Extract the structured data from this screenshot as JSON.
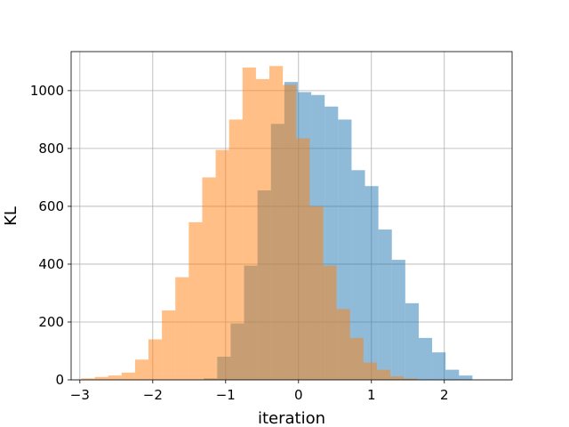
{
  "chart_data": {
    "type": "bar",
    "subtype": "histogram",
    "title": "",
    "xlabel": "iteration",
    "ylabel": "KL",
    "xlim": [
      -3.12,
      2.93
    ],
    "ylim": [
      0,
      1135
    ],
    "xticks": [
      -3,
      -2,
      -1,
      0,
      1,
      2
    ],
    "yticks": [
      0,
      200,
      400,
      600,
      800,
      1000
    ],
    "grid": true,
    "legend": "none",
    "series": [
      {
        "color": "#1f77b4",
        "opacity": 0.5,
        "bin_width": 0.1843,
        "bin_start": -1.3,
        "counts": [
          5,
          80,
          195,
          395,
          655,
          885,
          1030,
          995,
          985,
          945,
          900,
          725,
          670,
          520,
          415,
          265,
          145,
          95,
          35,
          15
        ]
      },
      {
        "color": "#ff7f0e",
        "opacity": 0.5,
        "bin_width": 0.1843,
        "bin_start": -2.98,
        "counts": [
          5,
          10,
          15,
          25,
          70,
          140,
          240,
          355,
          545,
          700,
          795,
          900,
          1080,
          1040,
          1085,
          1020,
          835,
          600,
          395,
          245,
          145,
          60,
          35,
          12,
          5
        ]
      }
    ]
  }
}
